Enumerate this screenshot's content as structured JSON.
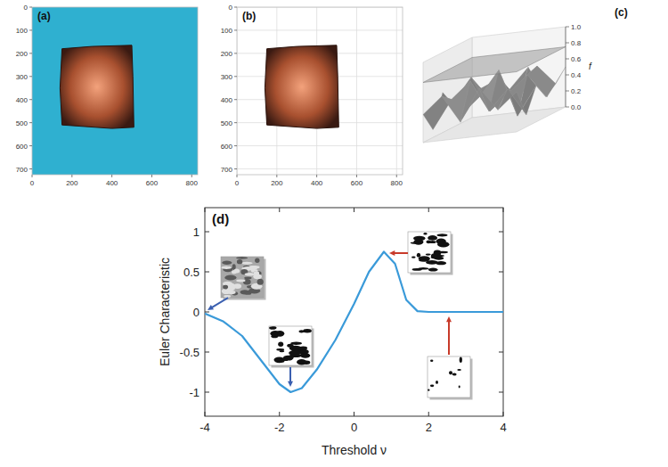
{
  "chart_data": [
    {
      "type": "image",
      "label": "(a)",
      "xlim": [
        0,
        830
      ],
      "ylim": [
        725,
        0
      ],
      "xticks": [
        0,
        200,
        400,
        600,
        800
      ],
      "yticks": [
        0,
        100,
        200,
        300,
        400,
        500,
        600,
        700
      ],
      "outline": {
        "x": [
          150,
          300,
          500,
          505,
          510,
          400,
          150,
          140
        ],
        "y": [
          180,
          170,
          165,
          300,
          520,
          525,
          510,
          350
        ]
      },
      "colors": [
        "#2fb0d0",
        "#a8502f"
      ],
      "grid": false
    },
    {
      "type": "image",
      "label": "(b)",
      "xlim": [
        0,
        830
      ],
      "ylim": [
        725,
        0
      ],
      "xticks": [
        0,
        200,
        400,
        600,
        800
      ],
      "yticks": [
        0,
        100,
        200,
        300,
        400,
        500,
        600,
        700
      ],
      "outline": {
        "x": [
          150,
          300,
          500,
          505,
          510,
          400,
          150,
          140
        ],
        "y": [
          180,
          170,
          165,
          300,
          520,
          525,
          510,
          350
        ]
      },
      "colors": [
        "#ffffff",
        "#a8502f"
      ],
      "grid": true
    },
    {
      "type": "surface",
      "label": "(c)",
      "z_label": "f",
      "zlim": [
        0,
        1
      ],
      "zticks": [
        {
          "value": 0,
          "label": "0.0"
        },
        {
          "value": 0.2,
          "label": "0.2"
        },
        {
          "value": 0.4,
          "label": "0.4"
        },
        {
          "value": 0.6,
          "label": "0.6"
        },
        {
          "value": 0.8,
          "label": "0.8"
        },
        {
          "value": 1,
          "label": "1.0"
        }
      ],
      "z": [
        [
          0.35,
          0.55,
          0.2,
          0.6,
          0.3,
          0.5
        ],
        [
          0.1,
          0.45,
          0.65,
          0.25,
          0.5,
          0.15
        ],
        [
          0.5,
          0.2,
          0.4,
          0.7,
          0.1,
          0.45
        ],
        [
          0.3,
          0.6,
          0.15,
          0.35,
          0.55,
          0.25
        ],
        [
          0.05,
          0.4,
          0.5,
          0.2,
          0.6,
          0.35
        ],
        [
          0.45,
          0.25,
          0.3,
          0.55,
          0.15,
          0.5
        ]
      ],
      "plane": 0.75,
      "color": "#9a9a9a",
      "tick_labels": "y"
    },
    {
      "type": "line",
      "label": "(d)",
      "x_label": "Threshold ν",
      "y_label": "Euler Characteristic",
      "x": [
        -4,
        -3.5,
        -3,
        -2.5,
        -2,
        -1.7,
        -1.4,
        -1,
        -0.5,
        0,
        0.4,
        0.8,
        1.1,
        1.4,
        1.7,
        2,
        3,
        4
      ],
      "values": [
        -0.02,
        -0.12,
        -0.3,
        -0.6,
        -0.9,
        -1.0,
        -0.95,
        -0.72,
        -0.35,
        0.1,
        0.5,
        0.75,
        0.6,
        0.15,
        0.01,
        0,
        0,
        0
      ],
      "color": "#3a9ad9",
      "xlim": [
        -4,
        4
      ],
      "ylim": [
        -1.3,
        1.3
      ],
      "xticks": [
        -4,
        -2,
        0,
        2,
        4
      ],
      "yticks": [
        -1,
        -0.5,
        0,
        0.5,
        1
      ],
      "grid": false
    }
  ]
}
